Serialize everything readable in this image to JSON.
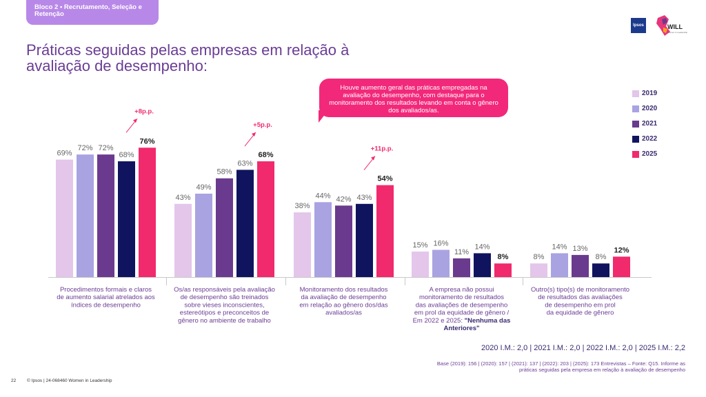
{
  "section_tag": "Bloco 2 • Recrutamento, Seleção e Retenção",
  "title": "Práticas seguidas pelas empresas em relação à avaliação de desempenho:",
  "logos": {
    "ipsos": "Ipsos",
    "will": "WILL",
    "will_sub": "Women in Leadership"
  },
  "callout": "Houve aumento geral das práticas empregadas na avaliação do desempenho, com destaque para o monitoramento dos resultados levando em conta o gênero dos avaliados/as.",
  "chart_data": {
    "type": "bar",
    "series": [
      {
        "name": "2019",
        "color": "#e3c6ea",
        "values": [
          69,
          43,
          38,
          15,
          8
        ]
      },
      {
        "name": "2020",
        "color": "#a9a3e2",
        "values": [
          72,
          49,
          44,
          16,
          14
        ]
      },
      {
        "name": "2021",
        "color": "#6a3a8e",
        "values": [
          72,
          58,
          42,
          11,
          13
        ]
      },
      {
        "name": "2022",
        "color": "#10145e",
        "values": [
          68,
          63,
          43,
          14,
          8
        ]
      },
      {
        "name": "2025",
        "color": "#f02a6c",
        "values": [
          76,
          68,
          54,
          8,
          12
        ]
      }
    ],
    "categories": [
      "Procedimentos formais e claros de aumento salarial atrelados aos índices de desempenho",
      "Os/as responsáveis pela avaliação de desempenho são treinados sobre vieses inconscientes, estereótipos e preconceitos de gênero no ambiente de trabalho",
      "Monitoramento dos resultados da avaliação de desempenho em relação ao gênero dos/das avaliados/as",
      "A empresa não possui monitoramento de resultados das avaliações de desempenho em prol da equidade de gênero / Em 2022 e 2025: \"Nenhuma das Anteriores\"",
      "Outro(s) tipo(s) de monitoramento de resultados das avaliações de desempenho em prol da equidade de gênero"
    ],
    "category_lines": [
      [
        "Procedimentos formais e claros",
        "de aumento salarial atrelados aos",
        "índices de desempenho"
      ],
      [
        "Os/as responsáveis pela avaliação",
        "de desempenho são treinados",
        "sobre vieses inconscientes,",
        "estereótipos e preconceitos de",
        "gênero no ambiente de trabalho"
      ],
      [
        "Monitoramento dos resultados",
        "da avaliação de desempenho",
        "em relação ao gênero dos/das",
        "avaliados/as"
      ],
      [
        "A empresa não possui",
        "monitoramento de resultados",
        "das avaliações de desempenho",
        "em prol da equidade de gênero /",
        "Em 2022 e 2025: \"Nenhuma das",
        "Anteriores\""
      ],
      [
        "Outro(s) tipo(s) de monitoramento",
        "de resultados das avaliações",
        "de desempenho em prol",
        "da equidade de gênero"
      ]
    ],
    "changes": [
      {
        "category_index": 0,
        "label": "+8p.p."
      },
      {
        "category_index": 1,
        "label": "+5p.p."
      },
      {
        "category_index": 2,
        "label": "+11p.p."
      }
    ],
    "ylim": [
      0,
      100
    ],
    "legend_position": "right"
  },
  "im_line": "2020 I.M.: 2,0 | 2021 I.M.: 2,0 | 2022 I.M.: 2,0 | 2025 I.M.: 2,2",
  "base_line": "Base (2019): 156 | (2020): 157 | (2021): 137 | (2022): 203 | (2025): 173 Entrevistas – Fonte: Q15. Informe as práticas seguidas pela empresa em relação à avaliação de desempenho",
  "footer": {
    "page": "22",
    "copyright": "© Ipsos | 24-068460 Women in Leadership"
  }
}
